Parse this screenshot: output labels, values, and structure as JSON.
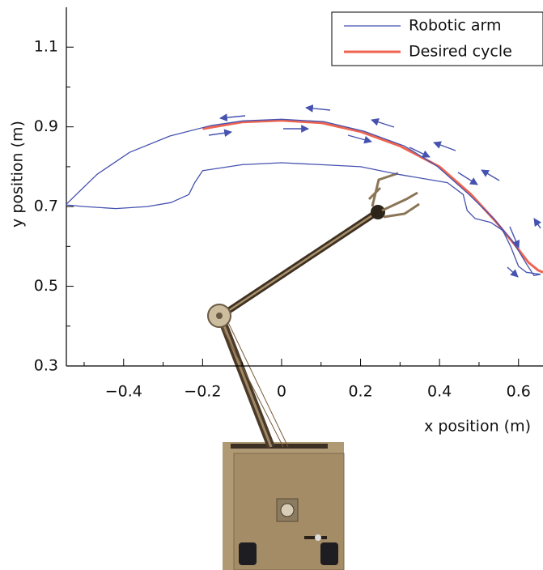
{
  "chart_data": {
    "type": "line",
    "x_label": "x position (m)",
    "y_label": "y position (m)",
    "xlim": [
      -0.545,
      0.662
    ],
    "ylim": [
      0.3,
      1.2
    ],
    "xticks": [
      {
        "value": -0.4,
        "label": "−0.4"
      },
      {
        "value": -0.2,
        "label": "−0.2"
      },
      0,
      0.2,
      0.4,
      0.6
    ],
    "xticks_minor": [
      -0.5,
      -0.3,
      -0.1,
      0.1,
      0.3,
      0.5
    ],
    "yticks": [
      0.3,
      0.5,
      0.7,
      0.9,
      1.1
    ],
    "yticks_minor": [
      0.4,
      0.6,
      0.8,
      1.0
    ],
    "legend": "upper right",
    "series": [
      {
        "name": "Robotic arm",
        "color": "#4552b0",
        "width": 1.3,
        "x": [
          -0.545,
          -0.467,
          -0.385,
          -0.283,
          -0.18,
          -0.098,
          0,
          0.107,
          0.209,
          0.311,
          0.393,
          0.475,
          0.537,
          0.588,
          0.619,
          0.639,
          0.655,
          0.62,
          0.6,
          0.58,
          0.56,
          0.53,
          0.49,
          0.47,
          0.46,
          0.42,
          0.3,
          0.2,
          0.1,
          0,
          -0.1,
          -0.2,
          -0.22,
          -0.235,
          -0.28,
          -0.34,
          -0.42,
          -0.5,
          -0.545
        ],
        "y": [
          0.706,
          0.781,
          0.836,
          0.877,
          0.903,
          0.915,
          0.919,
          0.913,
          0.889,
          0.852,
          0.802,
          0.73,
          0.67,
          0.609,
          0.558,
          0.527,
          0.53,
          0.535,
          0.55,
          0.6,
          0.64,
          0.66,
          0.67,
          0.69,
          0.73,
          0.76,
          0.78,
          0.8,
          0.805,
          0.81,
          0.805,
          0.79,
          0.76,
          0.73,
          0.71,
          0.7,
          0.695,
          0.7,
          0.704
        ]
      },
      {
        "name": "Desired cycle",
        "color": "#ef6450",
        "width": 3,
        "x": [
          -0.2,
          -0.1,
          0,
          0.1,
          0.2,
          0.3,
          0.4,
          0.48,
          0.54,
          0.59,
          0.625,
          0.65,
          0.662
        ],
        "y": [
          0.895,
          0.912,
          0.916,
          0.91,
          0.888,
          0.852,
          0.8,
          0.73,
          0.665,
          0.605,
          0.56,
          0.54,
          0.535
        ]
      }
    ]
  }
}
